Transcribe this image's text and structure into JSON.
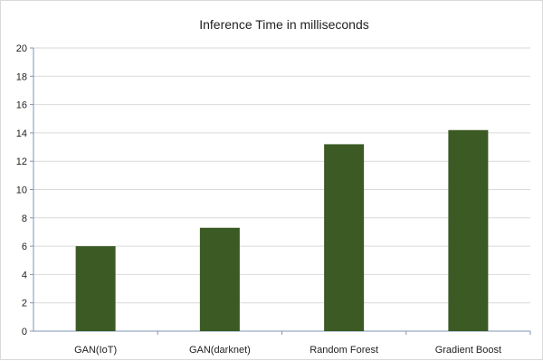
{
  "chart_data": {
    "type": "bar",
    "title": "Inference Time in milliseconds",
    "xlabel": "",
    "ylabel": "",
    "categories": [
      "GAN(IoT)",
      "GAN(darknet)",
      "Random Forest",
      "Gradient Boost"
    ],
    "values": [
      6.0,
      7.3,
      13.2,
      14.2
    ],
    "ylim": [
      0,
      20
    ],
    "yticks": [
      0,
      2,
      4,
      6,
      8,
      10,
      12,
      14,
      16,
      18,
      20
    ],
    "grid": true,
    "legend": "none",
    "bar_color": "#3b5a24",
    "grid_color": "#d9d9d9",
    "axis_color": "#7f95b5"
  }
}
